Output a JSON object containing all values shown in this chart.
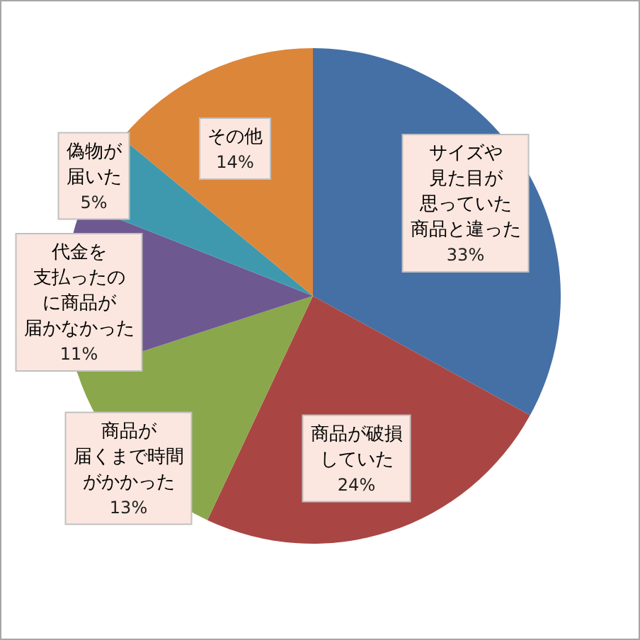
{
  "chart_data": {
    "type": "pie",
    "categories": [
      "サイズや見た目が思っていた商品と違った",
      "商品が破損していた",
      "商品が届くまで時間がかかった",
      "代金を支払ったのに商品が届かなかった",
      "偽物が届いた",
      "その他"
    ],
    "values": [
      33,
      24,
      13,
      11,
      5,
      14
    ],
    "colors": [
      "#4470a6",
      "#a94643",
      "#8aa74b",
      "#6e5890",
      "#3e99af",
      "#dc863a"
    ],
    "value_labels": [
      "33%",
      "24%",
      "13%",
      "11%",
      "5%",
      "14%"
    ]
  }
}
